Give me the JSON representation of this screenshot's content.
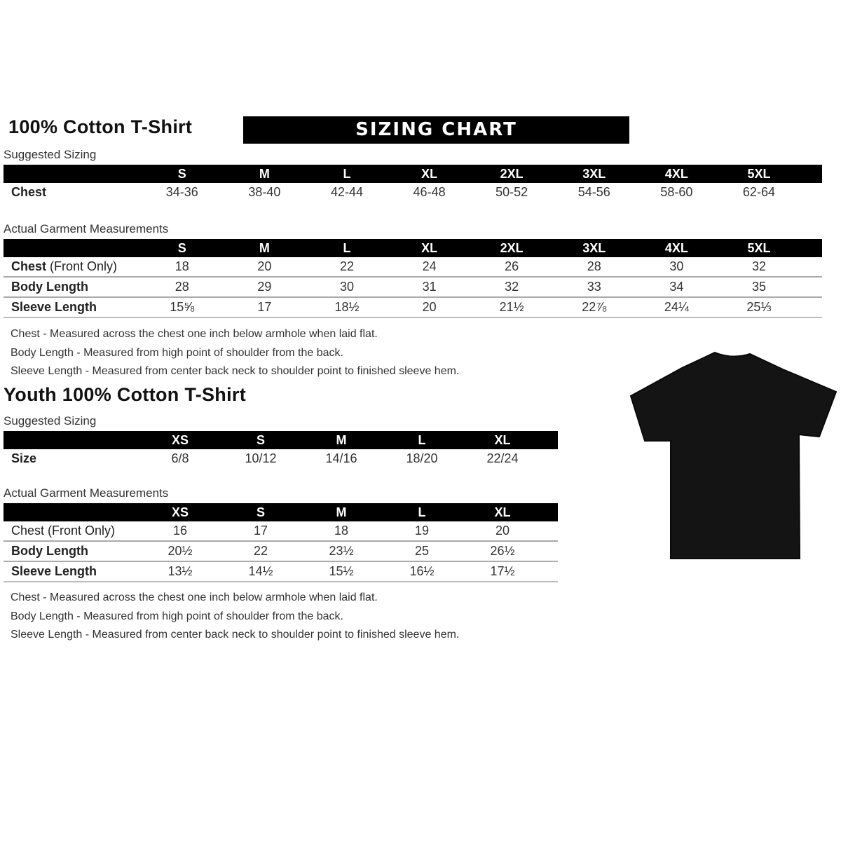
{
  "adult": {
    "title": "100% Cotton T-Shirt",
    "banner": "SIZING CHART",
    "suggested": {
      "label": "Suggested Sizing",
      "sizes": [
        "S",
        "M",
        "L",
        "XL",
        "2XL",
        "3XL",
        "4XL",
        "5XL"
      ],
      "rows": [
        {
          "label": "Chest",
          "label_note": "",
          "values": [
            "34-36",
            "38-40",
            "42-44",
            "46-48",
            "50-52",
            "54-56",
            "58-60",
            "62-64"
          ]
        }
      ]
    },
    "actual": {
      "label": "Actual Garment Measurements",
      "sizes": [
        "S",
        "M",
        "L",
        "XL",
        "2XL",
        "3XL",
        "4XL",
        "5XL"
      ],
      "rows": [
        {
          "label": "Chest",
          "label_note": " (Front Only)",
          "values": [
            "18",
            "20",
            "22",
            "24",
            "26",
            "28",
            "30",
            "32"
          ]
        },
        {
          "label": "Body Length",
          "label_note": "",
          "values": [
            "28",
            "29",
            "30",
            "31",
            "32",
            "33",
            "34",
            "35"
          ]
        },
        {
          "label": "Sleeve Length",
          "label_note": "",
          "values": [
            "15⅝",
            "17",
            "18½",
            "20",
            "21½",
            "22⅞",
            "24¼",
            "25⅓"
          ]
        }
      ]
    },
    "notes": [
      "Chest - Measured across the chest one inch below armhole when laid flat.",
      "Body Length - Measured from high point of shoulder from the back.",
      "Sleeve Length - Measured from center back neck to shoulder point to finished sleeve hem."
    ]
  },
  "youth": {
    "title": "Youth 100% Cotton T-Shirt",
    "suggested": {
      "label": "Suggested Sizing",
      "sizes": [
        "XS",
        "S",
        "M",
        "L",
        "XL"
      ],
      "rows": [
        {
          "label": "Size",
          "label_note": "",
          "values": [
            "6/8",
            "10/12",
            "14/16",
            "18/20",
            "22/24"
          ]
        }
      ]
    },
    "actual": {
      "label": "Actual Garment Measurements",
      "sizes": [
        "XS",
        "S",
        "M",
        "L",
        "XL"
      ],
      "rows": [
        {
          "label": "Chest (Front Only)",
          "label_note": "",
          "values": [
            "16",
            "17",
            "18",
            "19",
            "20"
          ]
        },
        {
          "label": "Body Length",
          "label_note": "",
          "values": [
            "20½",
            "22",
            "23½",
            "25",
            "26½"
          ]
        },
        {
          "label": "Sleeve Length",
          "label_note": "",
          "values": [
            "13½",
            "14½",
            "15½",
            "16½",
            "17½"
          ]
        }
      ]
    },
    "notes": [
      "Chest - Measured across the chest one inch below armhole when laid flat.",
      "Body Length - Measured from high point of shoulder from the back.",
      "Sleeve Length - Measured from center back neck to shoulder point to finished sleeve hem."
    ]
  },
  "image": {
    "icon": "black-t-shirt-icon",
    "color": "#141414"
  }
}
